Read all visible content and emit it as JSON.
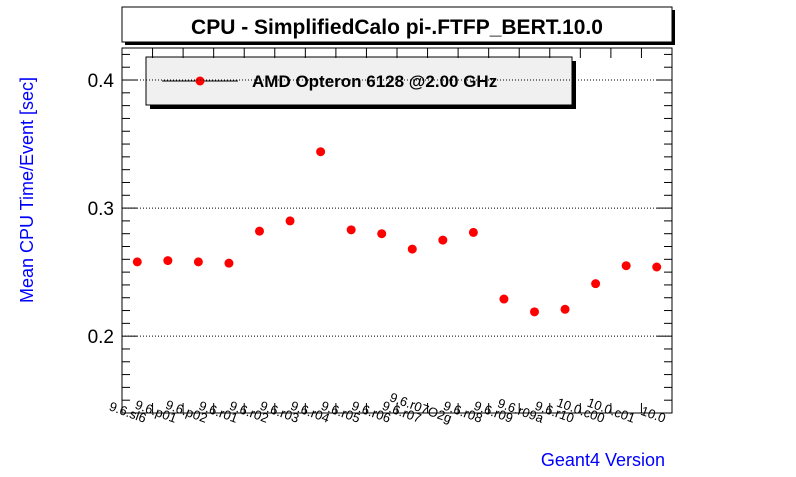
{
  "chart_data": {
    "type": "scatter",
    "title": "CPU - SimplifiedCalo pi-.FTFP_BERT.10.0",
    "xlabel": "Geant4 Version",
    "ylabel": "Mean CPU Time/Event [sec]",
    "categories": [
      "9.6.sl6",
      "9.6.p01",
      "9.6.p02",
      "9.6.r01",
      "9.6.r02",
      "9.6.r03",
      "9.6.r04",
      "9.6.r05",
      "9.6.r06",
      "9.6.r07",
      "9.6.r07O2g",
      "9.6.r08",
      "9.6.r09",
      "9.6.r09a",
      "9.6.r10",
      "10.0.c00",
      "10.0.c01",
      "10.0"
    ],
    "ylim": [
      0.14,
      0.425
    ],
    "yticks": [
      0.2,
      0.3,
      0.4
    ],
    "ytick_labels": [
      "0.2",
      "0.3",
      "0.4"
    ],
    "grid": "horizontal dotted",
    "legend_placement": "top-left",
    "series": [
      {
        "name": "AMD Opteron 6128 @2.00 GHz",
        "color": "#ff0000",
        "values": [
          0.258,
          0.259,
          0.258,
          0.257,
          0.282,
          0.29,
          0.344,
          0.283,
          0.28,
          0.268,
          0.275,
          0.281,
          0.229,
          0.219,
          0.221,
          0.241,
          0.255,
          0.254
        ]
      }
    ]
  }
}
